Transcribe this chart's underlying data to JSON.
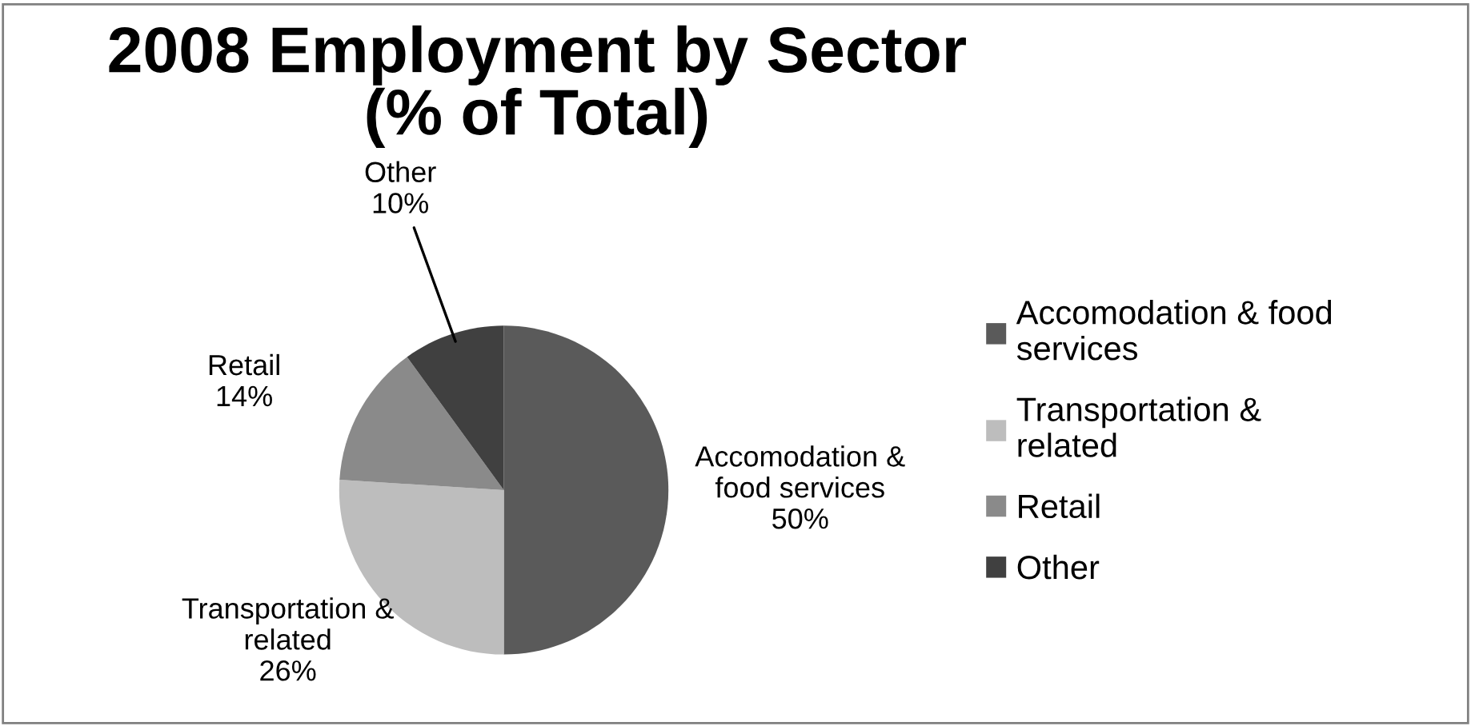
{
  "chart_data": {
    "type": "pie",
    "title": "2008 Employment by Sector\n(% of Total)",
    "categories": [
      "Accomodation & food services",
      "Transportation & related",
      "Retail",
      "Other"
    ],
    "values": [
      50,
      26,
      14,
      10
    ],
    "colors": [
      "#5a5a5a",
      "#bdbdbd",
      "#8a8a8a",
      "#404040"
    ],
    "value_labels": [
      "50%",
      "26%",
      "14%",
      "10%"
    ],
    "legend": "right"
  }
}
